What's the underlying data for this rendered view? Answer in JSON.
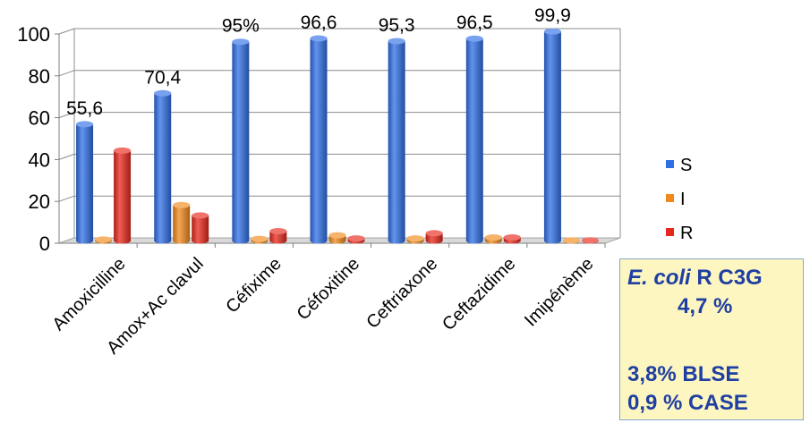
{
  "chart_data": {
    "type": "bar",
    "title": "",
    "xlabel": "",
    "ylabel": "",
    "ylim": [
      0,
      100
    ],
    "yticks": [
      0,
      20,
      40,
      60,
      80,
      100
    ],
    "categories": [
      "Amoxicilline",
      "Amox+Ac clavul",
      "Céfixime",
      "Céfoxitine",
      "Ceftriaxone",
      "Ceftazidime",
      "Imipénème"
    ],
    "series": [
      {
        "name": "S",
        "color": "#2f6fe6",
        "values": [
          55.6,
          70.4,
          95,
          96.6,
          95.3,
          96.5,
          99.9
        ]
      },
      {
        "name": "I",
        "color": "#f08a1c",
        "values": [
          0.5,
          17,
          0.8,
          2.5,
          1,
          1.5,
          0.1
        ]
      },
      {
        "name": "R",
        "color": "#e8281c",
        "values": [
          43,
          12,
          4.5,
          1,
          3.5,
          1.5,
          0.1
        ]
      }
    ],
    "data_labels": [
      "55,6",
      "70,4",
      "95%",
      "96,6",
      "95,3",
      "96,5",
      "99,9"
    ],
    "legend_position": "right",
    "grid": true
  },
  "note": {
    "line1_italic": "E. coli",
    "line1_rest": " R C3G",
    "line2": "4,7 %",
    "line3": "3,8% BLSE",
    "line4": "0,9 % CASE"
  }
}
